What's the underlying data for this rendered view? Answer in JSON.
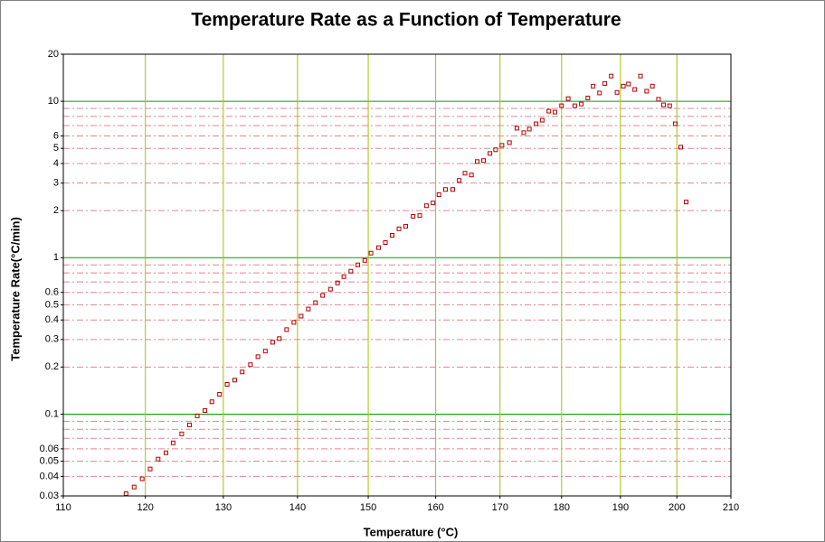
{
  "chart_data": {
    "type": "scatter",
    "title": "Temperature Rate as a Function of Temperature",
    "xlabel": "Temperature (°C)",
    "ylabel": "Temperature Rate(°C/min)",
    "xscale": "inverse-kelvin",
    "yscale": "log",
    "grid": true,
    "minor_grid": true,
    "color": "#b00000",
    "xlim": [
      110,
      210
    ],
    "xticks": [
      110,
      120,
      130,
      140,
      150,
      160,
      170,
      180,
      190,
      200,
      210
    ],
    "ylim": [
      0.03,
      20
    ],
    "yticks": [
      0.03,
      0.04,
      0.05,
      0.06,
      0.1,
      0.2,
      0.3,
      0.4,
      0.5,
      0.6,
      1,
      2,
      3,
      4,
      5,
      6,
      10,
      20
    ],
    "x": [
      117.6,
      118.6,
      119.6,
      120.6,
      121.6,
      122.6,
      123.5,
      124.6,
      125.6,
      126.6,
      127.6,
      128.5,
      129.5,
      130.5,
      131.5,
      132.5,
      133.6,
      134.6,
      135.6,
      136.6,
      137.5,
      138.5,
      139.5,
      140.5,
      141.5,
      142.5,
      143.5,
      144.6,
      145.6,
      146.5,
      147.5,
      148.5,
      149.5,
      150.4,
      151.5,
      152.5,
      153.5,
      154.5,
      155.5,
      156.6,
      157.6,
      158.6,
      159.6,
      160.5,
      161.5,
      162.6,
      163.6,
      164.5,
      165.5,
      166.4,
      167.4,
      168.4,
      169.3,
      170.3,
      171.5,
      172.7,
      173.8,
      174.7,
      175.8,
      176.8,
      177.9,
      178.9,
      180.0,
      181.1,
      182.2,
      183.3,
      184.4,
      185.3,
      186.4,
      187.3,
      188.4,
      189.4,
      190.5,
      191.4,
      192.5,
      193.5,
      194.6,
      195.6,
      196.7,
      197.6,
      198.7,
      199.7,
      200.7,
      201.7
    ],
    "values": [
      0.031,
      0.0342,
      0.0386,
      0.0446,
      0.0516,
      0.0566,
      0.0655,
      0.0748,
      0.0853,
      0.0975,
      0.1054,
      0.12,
      0.134,
      0.155,
      0.165,
      0.186,
      0.207,
      0.233,
      0.253,
      0.288,
      0.304,
      0.347,
      0.386,
      0.423,
      0.47,
      0.516,
      0.574,
      0.629,
      0.69,
      0.757,
      0.82,
      0.9,
      0.961,
      1.07,
      1.16,
      1.25,
      1.39,
      1.53,
      1.59,
      1.84,
      1.86,
      2.15,
      2.24,
      2.53,
      2.73,
      2.73,
      3.12,
      3.47,
      3.38,
      4.12,
      4.18,
      4.64,
      4.9,
      5.23,
      5.44,
      6.73,
      6.3,
      6.64,
      7.18,
      7.57,
      8.65,
      8.53,
      9.36,
      10.4,
      9.36,
      9.61,
      10.5,
      12.5,
      11.3,
      13.0,
      14.5,
      11.4,
      12.5,
      12.9,
      11.9,
      14.5,
      11.6,
      12.5,
      10.3,
      9.49,
      9.36,
      7.18,
      5.09,
      2.27
    ]
  }
}
